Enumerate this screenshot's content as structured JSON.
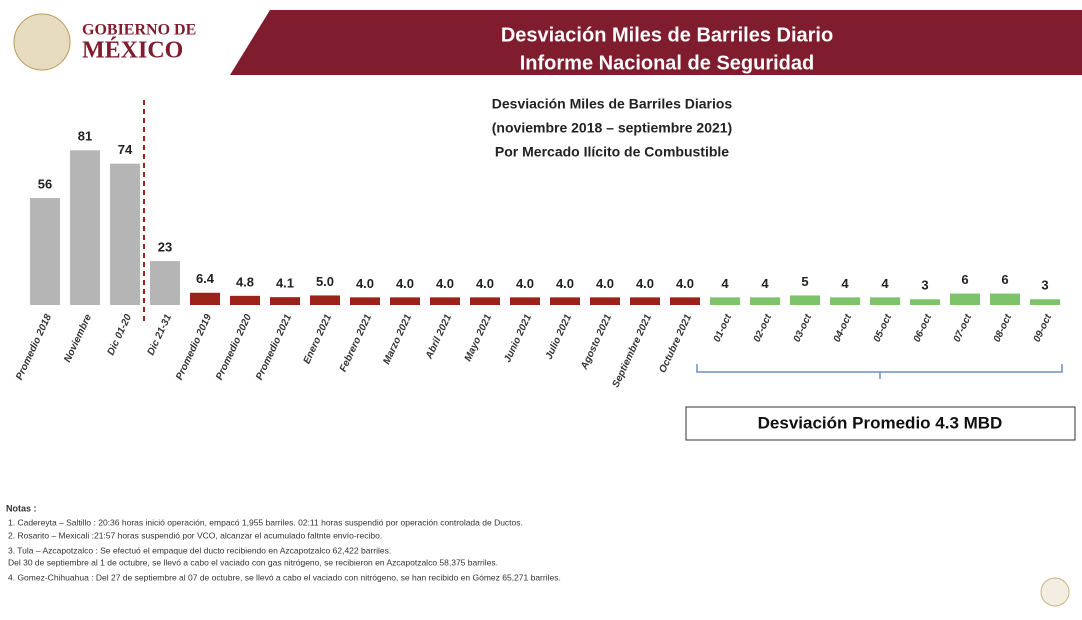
{
  "header": {
    "org_line1": "GOBIERNO DE",
    "org_line2": "MÉXICO",
    "title_line1": "Desviación Miles de Barriles Diario",
    "title_line2": "Informe Nacional de Seguridad"
  },
  "chart_data": {
    "type": "bar",
    "title_lines": [
      "Desviación Miles de Barriles Diarios",
      "(noviembre 2018 – septiembre 2021)",
      "Por Mercado Ilícito de Combustible"
    ],
    "categories": [
      "Promedio 2018",
      "Noviembre",
      "Dic 01-20",
      "Dic 21-31",
      "Promedio 2019",
      "Promedio 2020",
      "Promedio 2021",
      "Enero 2021",
      "Febrero 2021",
      "Marzo 2021",
      "Abril 2021",
      "Mayo 2021",
      "Junio 2021",
      "Julio 2021",
      "Agosto 2021",
      "Septiembre 2021",
      "Octubre 2021",
      "01-oct",
      "02-oct",
      "03-oct",
      "04-oct",
      "05-oct",
      "06-oct",
      "07-oct",
      "08-oct",
      "09-oct"
    ],
    "values": [
      56,
      81,
      74,
      23,
      6.4,
      4.8,
      4.1,
      5.0,
      4.0,
      4.0,
      4.0,
      4.0,
      4.0,
      4.0,
      4.0,
      4.0,
      4.0,
      4,
      4,
      5,
      4,
      4,
      3,
      6,
      6,
      3
    ],
    "value_labels": [
      "56",
      "81",
      "74",
      "23",
      "6.4",
      "4.8",
      "4.1",
      "5.0",
      "4.0",
      "4.0",
      "4.0",
      "4.0",
      "4.0",
      "4.0",
      "4.0",
      "4.0",
      "4.0",
      "4",
      "4",
      "5",
      "4",
      "4",
      "3",
      "6",
      "6",
      "3"
    ],
    "colors": [
      "#b5b5b5",
      "#b5b5b5",
      "#b5b5b5",
      "#b5b5b5",
      "#9b2219",
      "#9b2219",
      "#9b2219",
      "#9b2219",
      "#9b2219",
      "#9b2219",
      "#9b2219",
      "#9b2219",
      "#9b2219",
      "#9b2219",
      "#9b2219",
      "#9b2219",
      "#9b2219",
      "#7cc36a",
      "#7cc36a",
      "#7cc36a",
      "#7cc36a",
      "#7cc36a",
      "#7cc36a",
      "#7cc36a",
      "#7cc36a",
      "#7cc36a"
    ],
    "annotation": "Desviación Promedio 4.3 MBD"
  },
  "notes": {
    "heading": "Notas :",
    "items": [
      "1.  Cadereyta – Saltillo : 20:36 horas inició operación, empacó 1,955 barriles. 02:11 horas suspendió por operación controlada de Ductos.",
      "2.  Rosarito – Mexicali :21:57 horas suspendió por VCO, alcanzar el acumulado faltnte envío-recibo.",
      "3.  Tula – Azcapotzalco : Se efectuó  el empaque del ducto recibiendo en Azcapotzalco 62,422  barriles.",
      "     Del 30 de septiembre al 1 de octubre, se llevó a cabo el vaciado con gas nitrógeno, se recibieron en Azcapotzalco 58,375 barriles.",
      "4.  Gomez-Chihuahua : Del 27 de septiembre al 07 de octubre, se llevó a cabo el  vaciado con nitrógeno, se han recibido en Gómez 65,271 barriles."
    ]
  }
}
